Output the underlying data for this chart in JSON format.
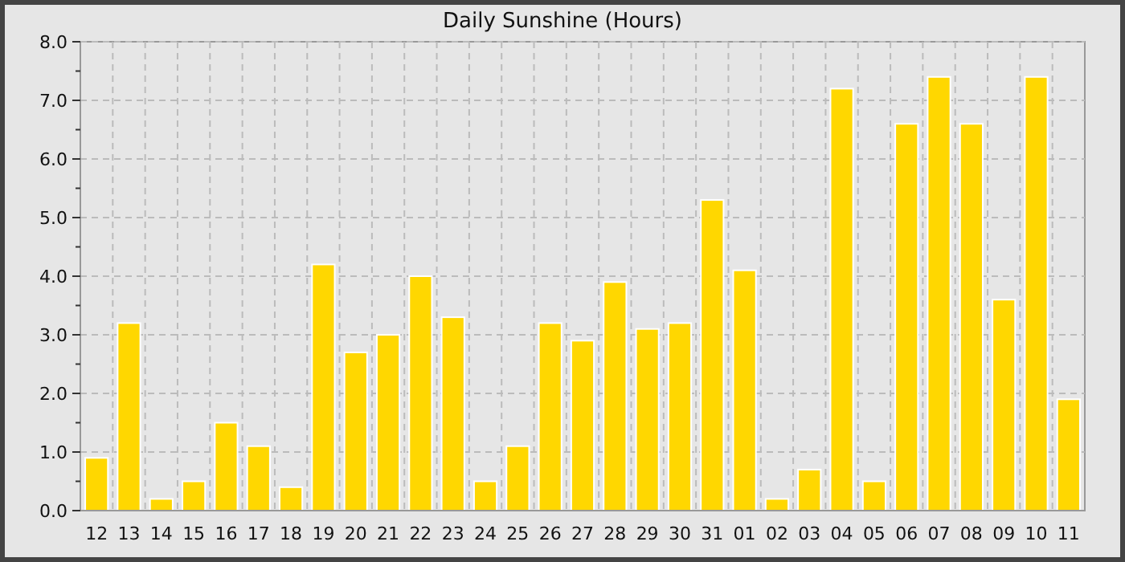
{
  "chart_data": {
    "type": "bar",
    "title": "Daily Sunshine (Hours)",
    "categories": [
      "12",
      "13",
      "14",
      "15",
      "16",
      "17",
      "18",
      "19",
      "20",
      "21",
      "22",
      "23",
      "24",
      "25",
      "26",
      "27",
      "28",
      "29",
      "30",
      "31",
      "01",
      "02",
      "03",
      "04",
      "05",
      "06",
      "07",
      "08",
      "09",
      "10",
      "11"
    ],
    "values": [
      0.9,
      3.2,
      0.2,
      0.5,
      1.5,
      1.1,
      0.4,
      4.2,
      2.7,
      3.0,
      4.0,
      3.3,
      0.5,
      1.1,
      3.2,
      2.9,
      3.9,
      3.1,
      3.2,
      5.3,
      4.1,
      0.2,
      0.7,
      7.2,
      0.5,
      6.6,
      7.4,
      6.6,
      3.6,
      7.4,
      1.9
    ],
    "color": "#ffd700",
    "ylim": [
      0,
      8
    ],
    "yticks": [
      {
        "value": 0,
        "label": "0.0"
      },
      {
        "value": 0.5,
        "label": null
      },
      {
        "value": 1,
        "label": "1.0"
      },
      {
        "value": 1.5,
        "label": null
      },
      {
        "value": 2,
        "label": "2.0"
      },
      {
        "value": 2.5,
        "label": null
      },
      {
        "value": 3,
        "label": "3.0"
      },
      {
        "value": 3.5,
        "label": null
      },
      {
        "value": 4,
        "label": "4.0"
      },
      {
        "value": 4.5,
        "label": null
      },
      {
        "value": 5,
        "label": "5.0"
      },
      {
        "value": 5.5,
        "label": null
      },
      {
        "value": 6,
        "label": "6.0"
      },
      {
        "value": 6.5,
        "label": null
      },
      {
        "value": 7,
        "label": "7.0"
      },
      {
        "value": 7.5,
        "label": null
      },
      {
        "value": 8,
        "label": "8.0"
      }
    ],
    "grid": true
  }
}
